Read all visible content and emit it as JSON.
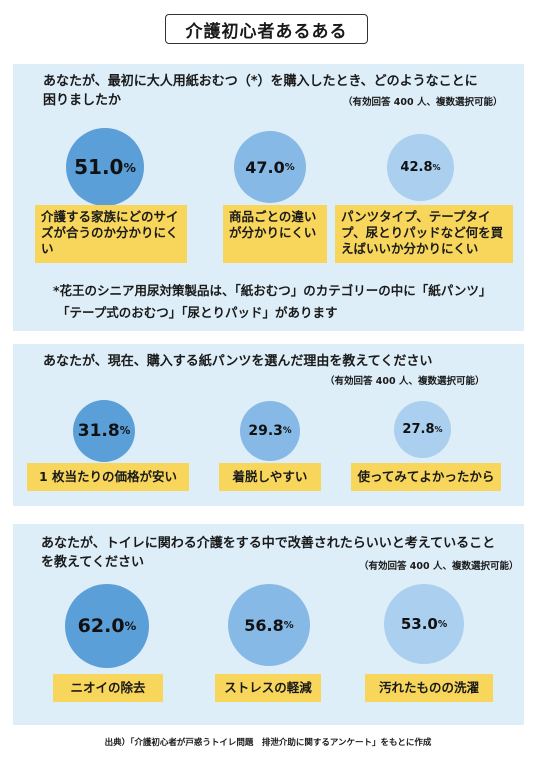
{
  "title": "介護初心者あるある",
  "section1": {
    "question": "あなたが、最初に大人用紙おむつ（*）を購入したとき、どのようなことに困りましたか",
    "note": "（有効回答 400 人、複数選択可能）",
    "items": [
      {
        "value": "51.0",
        "unit": "%",
        "label": "介護する家族にどのサイズが合うのか分かりにくい"
      },
      {
        "value": "47.0",
        "unit": "%",
        "label": "商品ごとの違いが分かりにくい"
      },
      {
        "value": "42.8",
        "unit": "%",
        "label": "パンツタイプ、テープタイプ、尿とりパッドなど何を買えばいいか分かりにくい"
      }
    ],
    "footnote_line1": "*花王のシニア用尿対策製品は、「紙おむつ」のカテゴリーの中に「紙パンツ」",
    "footnote_line2": "「テープ式のおむつ」「尿とりパッド」があります"
  },
  "section2": {
    "question": "あなたが、現在、購入する紙パンツを選んだ理由を教えてください",
    "note": "（有効回答 400 人、複数選択可能）",
    "items": [
      {
        "value": "31.8",
        "unit": "%",
        "label": "1 枚当たりの価格が安い"
      },
      {
        "value": "29.3",
        "unit": "%",
        "label": "着脱しやすい"
      },
      {
        "value": "27.8",
        "unit": "%",
        "label": "使ってみてよかったから"
      }
    ]
  },
  "section3": {
    "question": "あなたが、トイレに関わる介護をする中で改善されたらいいと考えていることを教えてください",
    "note": "（有効回答 400 人、複数選択可能）",
    "items": [
      {
        "value": "62.0",
        "unit": "%",
        "label": "ニオイの除去"
      },
      {
        "value": "56.8",
        "unit": "%",
        "label": "ストレスの軽減"
      },
      {
        "value": "53.0",
        "unit": "%",
        "label": "汚れたものの洗濯"
      }
    ]
  },
  "source": "出典）「介護初心者が戸惑うトイレ問題　排泄介助に関するアンケート」をもとに作成",
  "colors": {
    "panel": "#ddeef8",
    "circle_dark": "#5b9fd8",
    "circle_mid": "#87b9e6",
    "circle_light": "#abcfee",
    "answer_box": "#f7d65b"
  }
}
